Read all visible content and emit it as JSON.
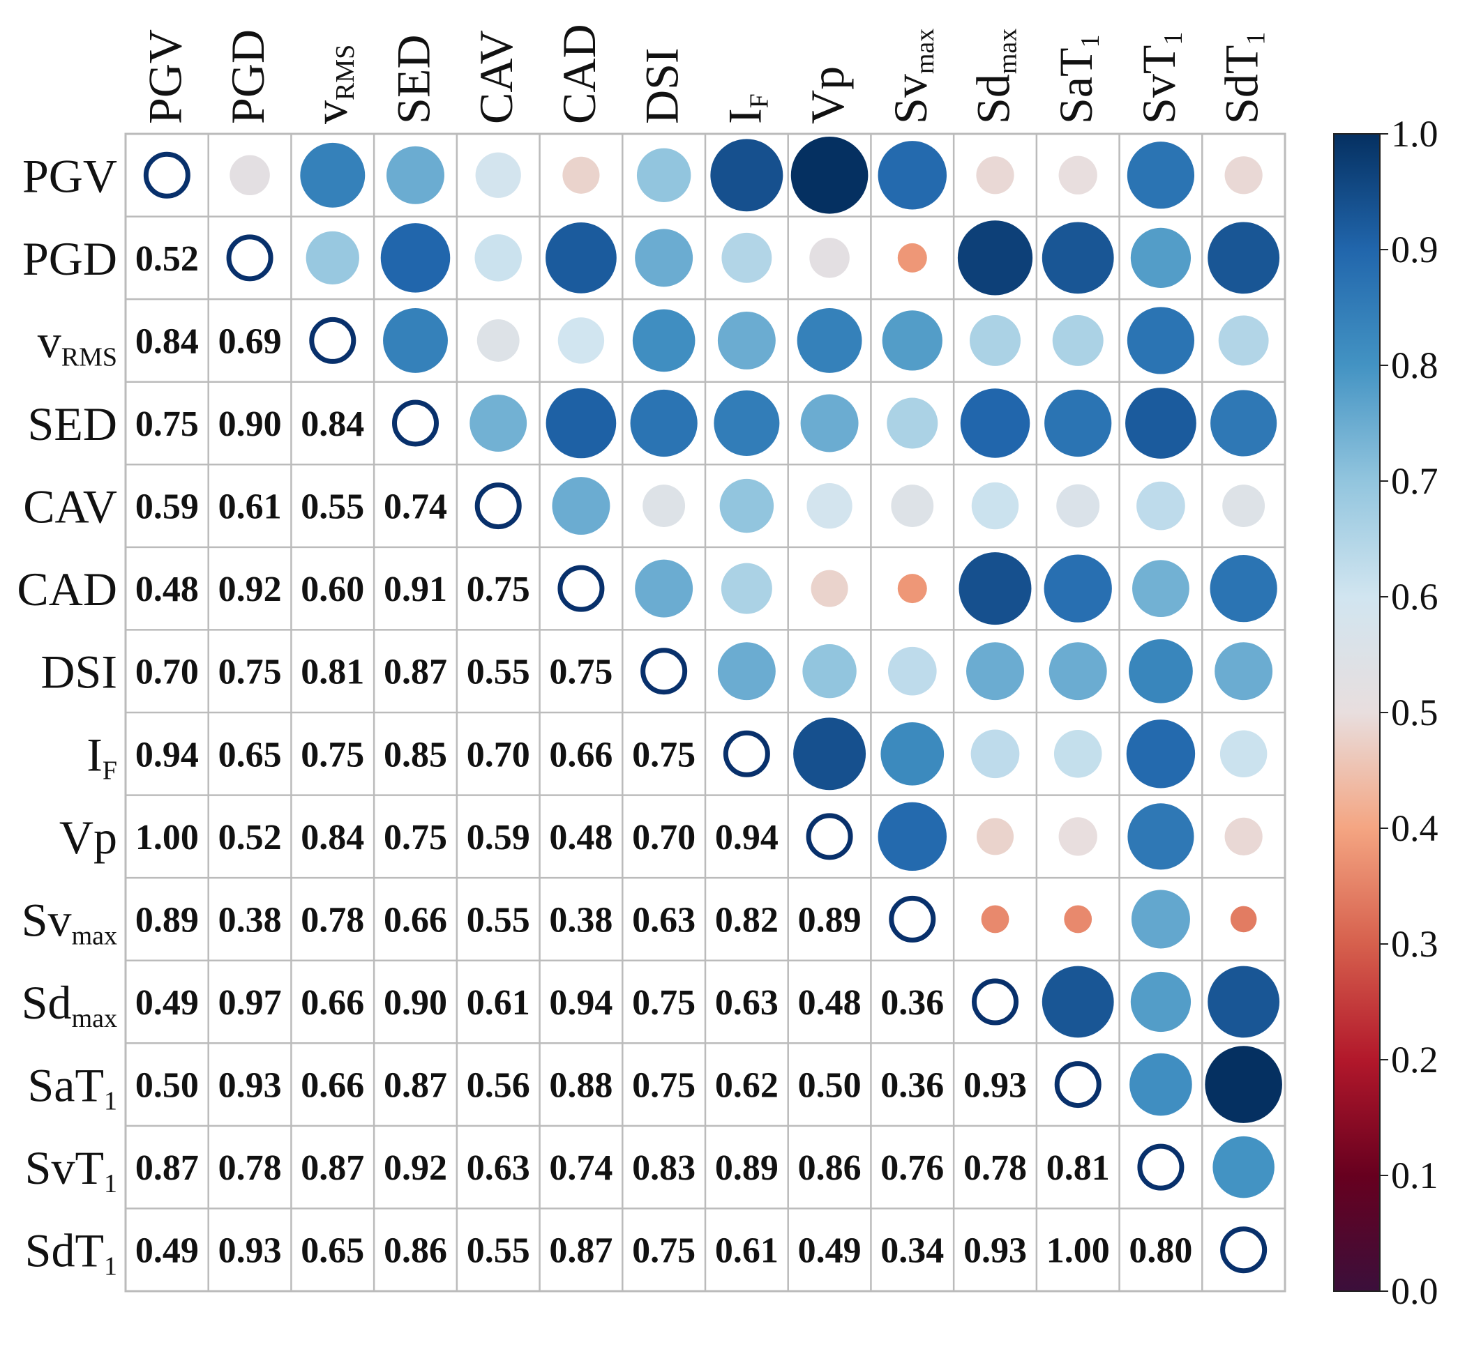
{
  "chart_data": {
    "type": "heatmap",
    "variables": [
      {
        "base": "PGV",
        "sub": ""
      },
      {
        "base": "PGD",
        "sub": ""
      },
      {
        "base": "v",
        "sub": "RMS"
      },
      {
        "base": "SED",
        "sub": ""
      },
      {
        "base": "CAV",
        "sub": ""
      },
      {
        "base": "CAD",
        "sub": ""
      },
      {
        "base": "DSI",
        "sub": ""
      },
      {
        "base": "I",
        "sub": "F"
      },
      {
        "base": "Vp",
        "sub": ""
      },
      {
        "base": "Sv",
        "sub": "max"
      },
      {
        "base": "Sd",
        "sub": "max"
      },
      {
        "base": "SaT",
        "sub": "1"
      },
      {
        "base": "SvT",
        "sub": "1"
      },
      {
        "base": "SdT",
        "sub": "1"
      }
    ],
    "values": [
      [
        null,
        0.52,
        0.84,
        0.75,
        0.59,
        0.48,
        0.7,
        0.94,
        1.0,
        0.89,
        0.49,
        0.5,
        0.87,
        0.49
      ],
      [
        0.52,
        null,
        0.69,
        0.9,
        0.61,
        0.92,
        0.75,
        0.65,
        0.52,
        0.38,
        0.97,
        0.93,
        0.78,
        0.93
      ],
      [
        0.84,
        0.69,
        null,
        0.84,
        0.55,
        0.6,
        0.81,
        0.75,
        0.84,
        0.78,
        0.66,
        0.66,
        0.87,
        0.65
      ],
      [
        0.75,
        0.9,
        0.84,
        null,
        0.74,
        0.91,
        0.87,
        0.85,
        0.75,
        0.66,
        0.9,
        0.87,
        0.92,
        0.86
      ],
      [
        0.59,
        0.61,
        0.55,
        0.74,
        null,
        0.75,
        0.55,
        0.7,
        0.59,
        0.55,
        0.61,
        0.56,
        0.63,
        0.55
      ],
      [
        0.48,
        0.92,
        0.6,
        0.91,
        0.75,
        null,
        0.75,
        0.66,
        0.48,
        0.38,
        0.94,
        0.88,
        0.74,
        0.87
      ],
      [
        0.7,
        0.75,
        0.81,
        0.87,
        0.55,
        0.75,
        null,
        0.75,
        0.7,
        0.63,
        0.75,
        0.75,
        0.83,
        0.75
      ],
      [
        0.94,
        0.65,
        0.75,
        0.85,
        0.7,
        0.66,
        0.75,
        null,
        0.94,
        0.82,
        0.63,
        0.62,
        0.89,
        0.61
      ],
      [
        1.0,
        0.52,
        0.84,
        0.75,
        0.59,
        0.48,
        0.7,
        0.94,
        null,
        0.89,
        0.48,
        0.5,
        0.86,
        0.49
      ],
      [
        0.89,
        0.38,
        0.78,
        0.66,
        0.55,
        0.38,
        0.63,
        0.82,
        0.89,
        null,
        0.36,
        0.36,
        0.76,
        0.34
      ],
      [
        0.49,
        0.97,
        0.66,
        0.9,
        0.61,
        0.94,
        0.75,
        0.63,
        0.48,
        0.36,
        null,
        0.93,
        0.78,
        0.93
      ],
      [
        0.5,
        0.93,
        0.66,
        0.87,
        0.56,
        0.88,
        0.75,
        0.62,
        0.5,
        0.36,
        0.93,
        null,
        0.81,
        1.0
      ],
      [
        0.87,
        0.78,
        0.87,
        0.92,
        0.63,
        0.74,
        0.83,
        0.89,
        0.86,
        0.76,
        0.78,
        0.81,
        null,
        0.8
      ],
      [
        0.49,
        0.93,
        0.65,
        0.86,
        0.55,
        0.87,
        0.75,
        0.61,
        0.49,
        0.34,
        0.93,
        1.0,
        0.8,
        null
      ]
    ],
    "lower_triangle": "numbers",
    "upper_triangle": "circles sized and colored by value",
    "diagonal": "open circle",
    "colorbar": {
      "range": [
        0.0,
        1.0
      ],
      "ticks": [
        "0.0",
        "0.1",
        "0.2",
        "0.3",
        "0.4",
        "0.5",
        "0.6",
        "0.7",
        "0.8",
        "0.9",
        "1.0"
      ],
      "colormap": "RdBu",
      "stops": [
        "#3b0f3b",
        "#67001f",
        "#b2182b",
        "#d6604d",
        "#f4a582",
        "#e8dede",
        "#d1e5f0",
        "#92c5de",
        "#4393c3",
        "#2166ac",
        "#053061"
      ],
      "placement": "right"
    },
    "grid": true,
    "title": "",
    "xlabel": "",
    "ylabel": ""
  },
  "colors": {
    "diagonal_ring": "#08306b",
    "grid": "#bbbbbb",
    "text": "#111111"
  }
}
